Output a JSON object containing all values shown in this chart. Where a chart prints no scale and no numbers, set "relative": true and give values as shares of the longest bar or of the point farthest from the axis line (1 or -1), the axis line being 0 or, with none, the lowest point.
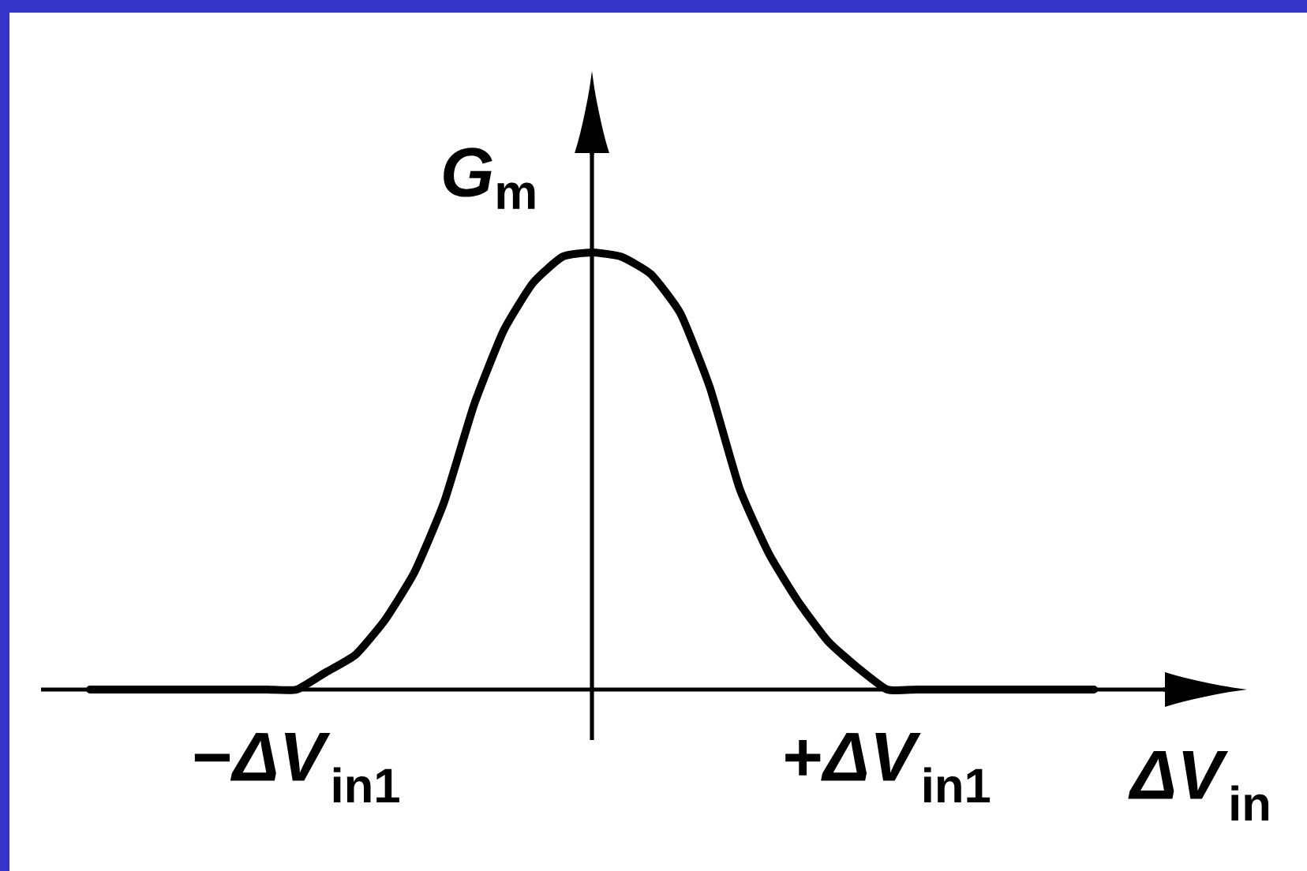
{
  "chart_data": {
    "type": "line",
    "relative": true,
    "xlabel": "*ΔV*$_{in}$",
    "ylabel": "*G*$_{m}$",
    "categories": [
      null,
      null,
      null,
      null,
      null,
      null,
      null,
      "−*ΔV*$_{in1}$",
      null,
      null,
      null,
      null,
      null,
      null,
      null,
      null,
      null,
      null,
      null,
      null,
      null,
      null,
      null,
      null,
      null,
      null,
      null,
      "+*ΔV*$_{in1}$",
      null,
      null,
      null,
      null,
      null,
      null,
      null
    ],
    "values": [
      0,
      0,
      0,
      0,
      0,
      0,
      0,
      0,
      0.04,
      0.08,
      0.16,
      0.27,
      0.43,
      0.65,
      0.82,
      0.93,
      0.99,
      1,
      0.99,
      0.95,
      0.86,
      0.69,
      0.46,
      0.31,
      0.2,
      0.11,
      0.05,
      0,
      0,
      0,
      0,
      0,
      0,
      0,
      0
    ],
    "color": "#000000",
    "marker": "none",
    "line_style": "solid"
  }
}
